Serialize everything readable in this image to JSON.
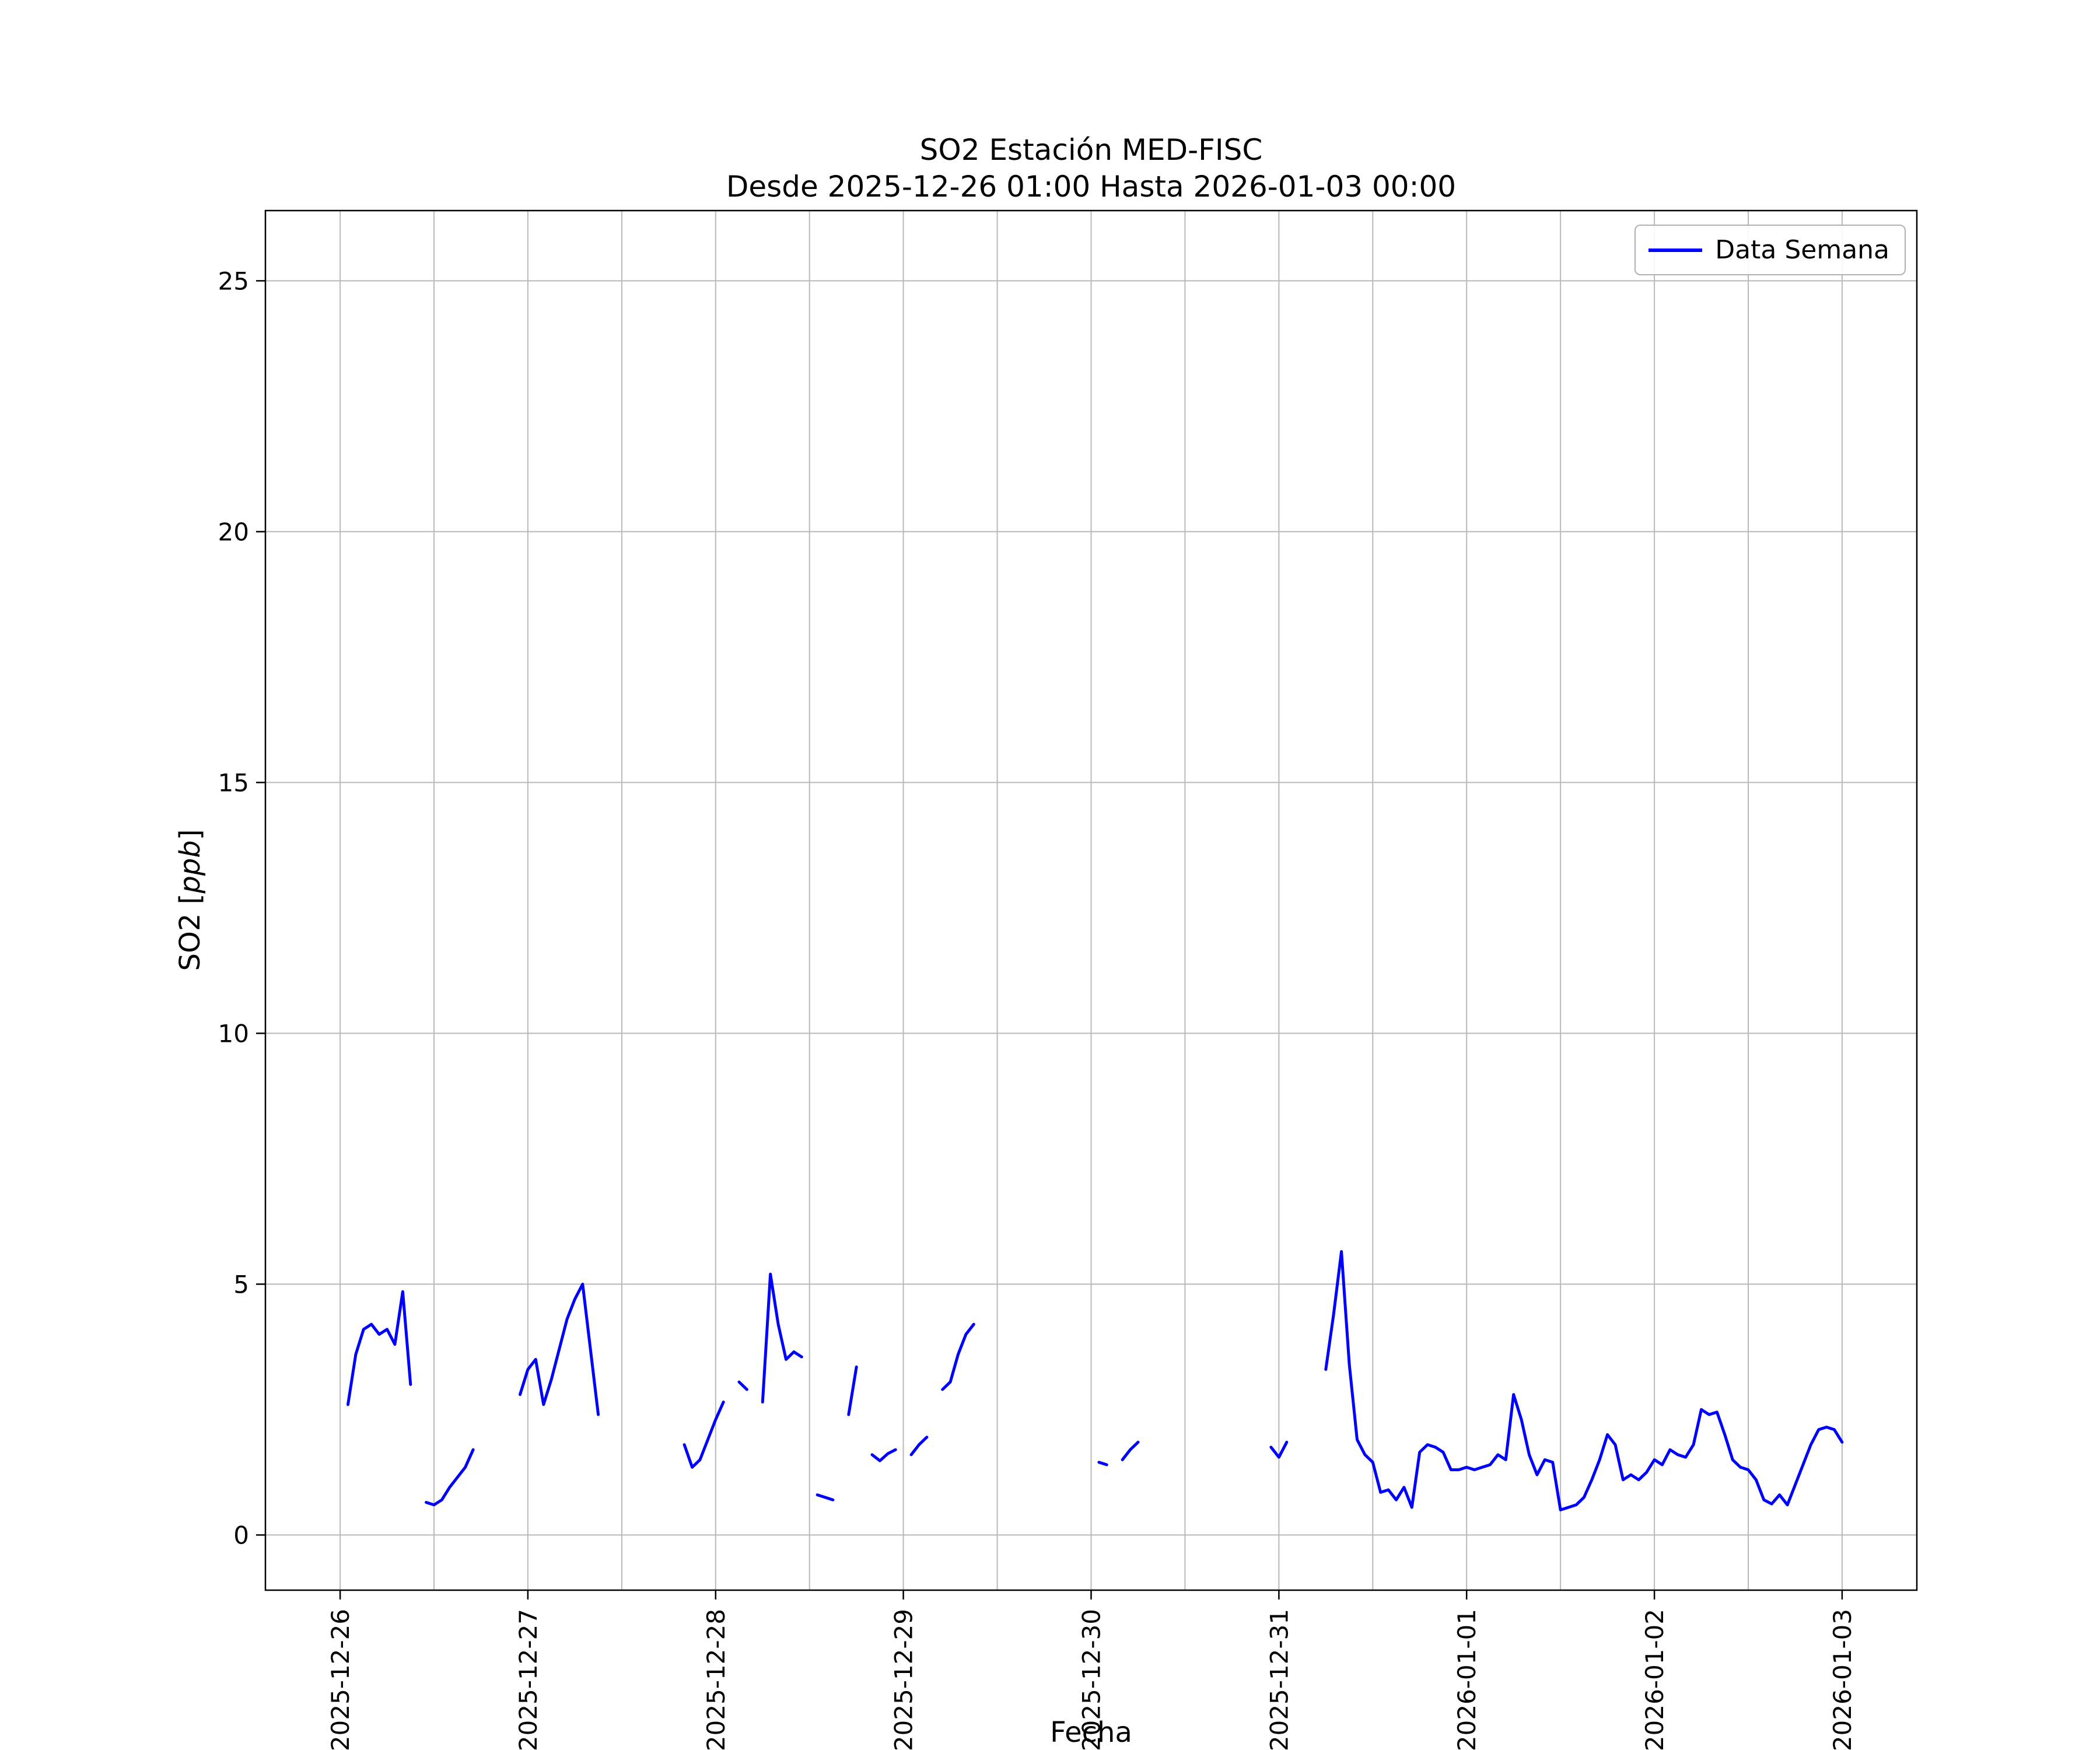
{
  "title": "SO2 Estación MED-FISC",
  "subtitle": "Desde 2025-12-26 01:00 Hasta 2026-01-03 00:00",
  "legend": {
    "label": "Data Semana"
  },
  "axes": {
    "xlabel": "Fecha",
    "ylabel_prefix": "SO2 [",
    "ylabel_math": "ppb",
    "ylabel_suffix": "]"
  },
  "colors": {
    "line": "#0000ff",
    "grid": "#b9b9b9",
    "axis": "#000000",
    "background": "#ffffff",
    "legend_border": "#b0b0b0"
  },
  "chart_data": {
    "type": "line",
    "title": "SO2 Estación MED-FISC\nDesde 2025-12-26 01:00 Hasta 2026-01-03 00:00",
    "xlabel": "Fecha",
    "ylabel": "SO2 [ppb]",
    "legend_position": "upper right",
    "grid": true,
    "series_name": "Data Semana",
    "x_unit": "hours since 2025-12-26 00:00",
    "xlim_hours": [
      -9.55,
      201.55
    ],
    "ylim": [
      -1.1,
      26.4
    ],
    "y_ticks": [
      0,
      5,
      10,
      15,
      20,
      25
    ],
    "y_tick_labels": [
      "0",
      "5",
      "10",
      "15",
      "20",
      "25"
    ],
    "x_tick_hours": [
      0,
      24,
      48,
      72,
      96,
      120,
      144,
      168,
      192
    ],
    "x_tick_labels": [
      "2025-12-26",
      "2025-12-27",
      "2025-12-28",
      "2025-12-29",
      "2025-12-30",
      "2025-12-31",
      "2026-01-01",
      "2026-01-02",
      "2026-01-03"
    ],
    "x_minor_grid_step_hours": 12,
    "segments": [
      [
        [
          1,
          2.6
        ],
        [
          2,
          3.6
        ],
        [
          3,
          4.1
        ],
        [
          4,
          4.2
        ],
        [
          5,
          4.0
        ],
        [
          6,
          4.1
        ],
        [
          7,
          3.8
        ],
        [
          8,
          4.85
        ],
        [
          9,
          3.0
        ]
      ],
      [
        [
          11,
          0.65
        ],
        [
          12,
          0.6
        ],
        [
          13,
          0.7
        ],
        [
          14,
          0.95
        ],
        [
          15,
          1.15
        ],
        [
          16,
          1.35
        ],
        [
          17,
          1.7
        ]
      ],
      [
        [
          23,
          2.8
        ],
        [
          24,
          3.3
        ],
        [
          25,
          3.5
        ],
        [
          26,
          2.6
        ],
        [
          27,
          3.1
        ],
        [
          28,
          3.7
        ],
        [
          29,
          4.3
        ],
        [
          30,
          4.7
        ],
        [
          31,
          5.0
        ],
        [
          32,
          3.7
        ],
        [
          33,
          2.4
        ]
      ],
      [
        [
          44,
          1.8
        ],
        [
          45,
          1.35
        ],
        [
          46,
          1.5
        ],
        [
          47,
          1.9
        ],
        [
          48,
          2.3
        ],
        [
          49,
          2.65
        ]
      ],
      [
        [
          51,
          3.05
        ],
        [
          52,
          2.9
        ]
      ],
      [
        [
          54,
          2.65
        ],
        [
          55,
          5.2
        ],
        [
          56,
          4.2
        ],
        [
          57,
          3.5
        ],
        [
          58,
          3.65
        ],
        [
          59,
          3.55
        ]
      ],
      [
        [
          61,
          0.8
        ],
        [
          62,
          0.75
        ],
        [
          63,
          0.7
        ]
      ],
      [
        [
          65,
          2.4
        ],
        [
          66,
          3.35
        ]
      ],
      [
        [
          68,
          1.6
        ],
        [
          69,
          1.48
        ],
        [
          70,
          1.62
        ],
        [
          71,
          1.7
        ]
      ],
      [
        [
          73,
          1.6
        ],
        [
          74,
          1.8
        ],
        [
          75,
          1.95
        ]
      ],
      [
        [
          77,
          2.9
        ],
        [
          78,
          3.05
        ],
        [
          79,
          3.6
        ],
        [
          80,
          4.0
        ],
        [
          81,
          4.2
        ]
      ],
      [
        [
          97,
          1.45
        ],
        [
          98,
          1.4
        ]
      ],
      [
        [
          100,
          1.5
        ],
        [
          101,
          1.7
        ],
        [
          102,
          1.85
        ]
      ],
      [
        [
          119,
          1.75
        ],
        [
          120,
          1.55
        ],
        [
          121,
          1.85
        ]
      ],
      [
        [
          126,
          3.3
        ],
        [
          127,
          4.4
        ],
        [
          128,
          5.65
        ],
        [
          129,
          3.4
        ],
        [
          130,
          1.9
        ],
        [
          131,
          1.6
        ],
        [
          132,
          1.45
        ],
        [
          133,
          0.85
        ],
        [
          134,
          0.9
        ],
        [
          135,
          0.7
        ],
        [
          136,
          0.95
        ],
        [
          137,
          0.55
        ],
        [
          138,
          1.65
        ],
        [
          139,
          1.8
        ],
        [
          140,
          1.75
        ],
        [
          141,
          1.65
        ],
        [
          142,
          1.3
        ],
        [
          143,
          1.3
        ],
        [
          144,
          1.35
        ],
        [
          145,
          1.3
        ],
        [
          146,
          1.35
        ],
        [
          147,
          1.4
        ],
        [
          148,
          1.6
        ],
        [
          149,
          1.5
        ],
        [
          150,
          2.8
        ],
        [
          151,
          2.3
        ],
        [
          152,
          1.6
        ],
        [
          153,
          1.2
        ],
        [
          154,
          1.5
        ],
        [
          155,
          1.45
        ],
        [
          156,
          0.5
        ],
        [
          157,
          0.55
        ],
        [
          158,
          0.6
        ],
        [
          159,
          0.75
        ],
        [
          160,
          1.1
        ],
        [
          161,
          1.5
        ],
        [
          162,
          2.0
        ],
        [
          163,
          1.8
        ],
        [
          164,
          1.1
        ],
        [
          165,
          1.2
        ],
        [
          166,
          1.1
        ],
        [
          167,
          1.25
        ],
        [
          168,
          1.5
        ],
        [
          169,
          1.4
        ],
        [
          170,
          1.7
        ],
        [
          171,
          1.6
        ],
        [
          172,
          1.55
        ],
        [
          173,
          1.8
        ],
        [
          174,
          2.5
        ],
        [
          175,
          2.4
        ],
        [
          176,
          2.45
        ],
        [
          177,
          2.0
        ],
        [
          178,
          1.5
        ],
        [
          179,
          1.35
        ],
        [
          180,
          1.3
        ],
        [
          181,
          1.1
        ],
        [
          182,
          0.7
        ],
        [
          183,
          0.62
        ],
        [
          184,
          0.8
        ],
        [
          185,
          0.6
        ],
        [
          186,
          1.0
        ],
        [
          187,
          1.4
        ],
        [
          188,
          1.8
        ],
        [
          189,
          2.1
        ],
        [
          190,
          2.15
        ],
        [
          191,
          2.1
        ],
        [
          192,
          1.85
        ]
      ]
    ]
  }
}
